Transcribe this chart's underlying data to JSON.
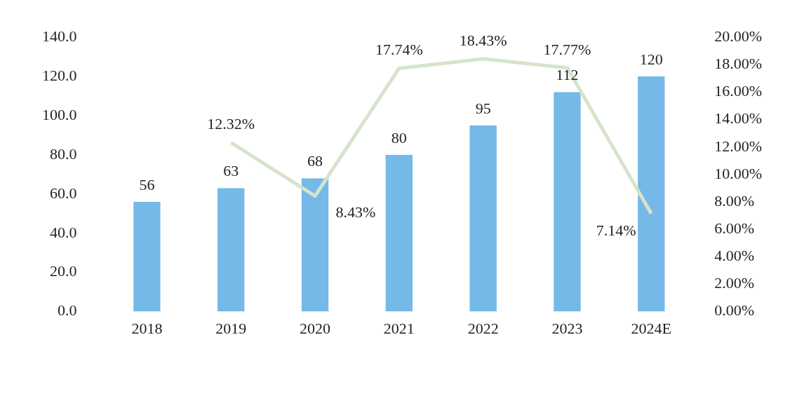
{
  "chart_data": {
    "type": "bar",
    "categories": [
      "2018",
      "2019",
      "2020",
      "2021",
      "2022",
      "2023",
      "2024E"
    ],
    "series": [
      {
        "color": "#74b9e7",
        "values": [
          56,
          63,
          68,
          80,
          95,
          112,
          120
        ],
        "value_labels": [
          "56",
          "63",
          "68",
          "80",
          "95",
          "112",
          "120"
        ]
      },
      {
        "type": "line",
        "axis": "y2",
        "color": "#d6e4cc",
        "values": [
          null,
          12.32,
          8.43,
          17.74,
          18.43,
          17.77,
          7.14
        ],
        "value_labels": [
          null,
          "12.32%",
          "8.43%",
          "17.74%",
          "18.43%",
          "17.77%",
          "7.14%"
        ]
      }
    ],
    "ylim": [
      0,
      140
    ],
    "yticks": [
      {
        "value": 0,
        "label": "0.0"
      },
      {
        "value": 20,
        "label": "20.0"
      },
      {
        "value": 40,
        "label": "40.0"
      },
      {
        "value": 60,
        "label": "60.0"
      },
      {
        "value": 80,
        "label": "80.0"
      },
      {
        "value": 100,
        "label": "100.0"
      },
      {
        "value": 120,
        "label": "120.0"
      },
      {
        "value": 140,
        "label": "140.0"
      }
    ],
    "y2lim": [
      0,
      20
    ],
    "y2ticks": [
      {
        "value": 0,
        "label": "0.00%"
      },
      {
        "value": 2,
        "label": "2.00%"
      },
      {
        "value": 4,
        "label": "4.00%"
      },
      {
        "value": 6,
        "label": "6.00%"
      },
      {
        "value": 8,
        "label": "8.00%"
      },
      {
        "value": 10,
        "label": "10.00%"
      },
      {
        "value": 12,
        "label": "12.00%"
      },
      {
        "value": 14,
        "label": "14.00%"
      },
      {
        "value": 16,
        "label": "16.00%"
      },
      {
        "value": 18,
        "label": "18.00%"
      },
      {
        "value": 20,
        "label": "20.00%"
      }
    ],
    "grid": false,
    "legend": false,
    "marker": "none"
  }
}
